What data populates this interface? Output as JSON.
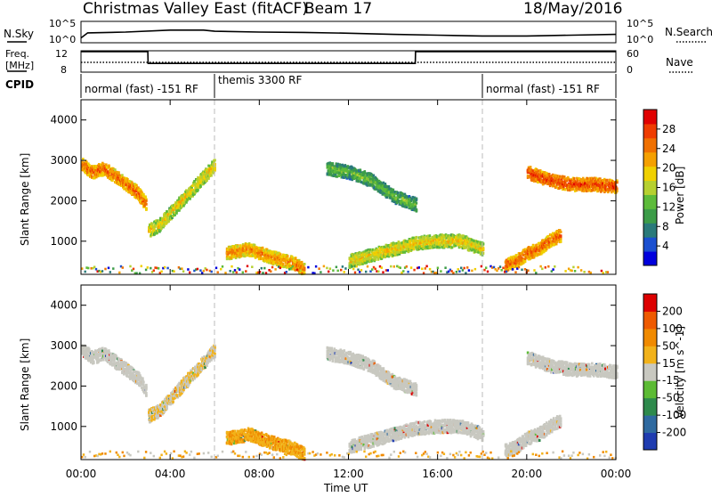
{
  "header": {
    "title": "Christmas Valley East (fitACF)",
    "beam": "Beam 17",
    "date": "18/May/2016"
  },
  "panels": {
    "nsky": {
      "label": "N.Sky",
      "ticks": [
        "10^5",
        "10^0"
      ]
    },
    "nsearch": {
      "label": "N.Search",
      "ticks": [
        "10^5",
        "10^0"
      ]
    },
    "freq": {
      "label_line1": "Freq.",
      "label_line2": "[MHz]",
      "ticks": [
        "12",
        "8"
      ]
    },
    "nave": {
      "label": "Nave",
      "ticks": [
        "60",
        "0"
      ]
    },
    "cpid": {
      "label": "CPID",
      "segments": [
        {
          "name": "normal (fast) -151 RF",
          "start": "00:00",
          "end": "06:00"
        },
        {
          "name": "themis 3300 RF",
          "start": "06:00",
          "end": "18:00"
        },
        {
          "name": "normal (fast) -151 RF",
          "start": "18:00",
          "end": "24:00"
        }
      ]
    }
  },
  "colorbars": {
    "power": {
      "label": "Power [dB]",
      "ticks": [
        "28",
        "24",
        "20",
        "16",
        "12",
        "8",
        "4"
      ],
      "colors": [
        "#0000dd",
        "#1a4fd0",
        "#2a7a7a",
        "#3c9c48",
        "#5dbb3a",
        "#b6d030",
        "#f0d000",
        "#f5a000",
        "#f07000",
        "#ef3c00",
        "#e00000"
      ]
    },
    "velocity": {
      "label": "Velocity [m s^-1]",
      "ticks": [
        "200",
        "100",
        "50",
        "15",
        "-15",
        "-50",
        "-100",
        "-200"
      ],
      "colors": [
        "#1f3cb0",
        "#2f6aa0",
        "#2e8a4c",
        "#5cbb34",
        "#c8c8c0",
        "#f2b21a",
        "#f08a00",
        "#ee5a00",
        "#dd0000"
      ]
    }
  },
  "axes": {
    "ylabel": "Slant Range [km]",
    "xlabel": "Time UT",
    "yticks": [
      "1000",
      "2000",
      "3000",
      "4000"
    ],
    "xticks": [
      "00:00",
      "04:00",
      "08:00",
      "12:00",
      "16:00",
      "20:00",
      "00:00"
    ]
  },
  "chart_data": [
    {
      "type": "line",
      "title": "N.Sky / N.Search",
      "x": [
        0,
        0.3,
        2,
        4,
        5.5,
        6,
        8,
        10,
        12,
        14,
        16,
        18,
        20,
        22,
        24
      ],
      "series": [
        {
          "name": "N.Sky",
          "values": [
            1.0,
            2.3,
            2.5,
            3.0,
            3.0,
            2.7,
            2.5,
            2.4,
            2.2,
            1.9,
            1.7,
            1.5,
            1.5,
            1.7,
            1.9
          ]
        }
      ],
      "ylim": [
        0,
        5
      ]
    },
    {
      "type": "line",
      "title": "Freq. [MHz] / Nave",
      "x": [
        0,
        3,
        3.01,
        15,
        15.01,
        24
      ],
      "series": [
        {
          "name": "Freq.",
          "values": [
            12,
            12,
            9.6,
            9.6,
            12,
            12
          ]
        },
        {
          "name": "Nave",
          "values": [
            30,
            30,
            30,
            30,
            30,
            30
          ]
        }
      ],
      "ylim": [
        8,
        12
      ]
    },
    {
      "type": "heatmap",
      "title": "Power [dB]",
      "xlabel": "Time UT",
      "ylabel": "Slant Range [km]",
      "xlim": [
        0,
        24
      ],
      "ylim": [
        180,
        4500
      ],
      "zlim": [
        0,
        32
      ],
      "bands": [
        {
          "x": [
            0.0,
            0.5,
            1.0,
            1.5,
            2.0,
            2.5,
            2.9
          ],
          "y": [
            2900,
            2700,
            2800,
            2600,
            2400,
            2200,
            1900
          ],
          "db": 26
        },
        {
          "x": [
            3.0,
            3.5,
            4.0,
            4.5,
            5.0,
            5.5,
            6.0
          ],
          "y": [
            1250,
            1400,
            1700,
            2000,
            2300,
            2600,
            2900
          ],
          "db": 20
        },
        {
          "x": [
            6.5,
            7.5,
            8.5,
            9.5,
            10.0
          ],
          "y": [
            700,
            800,
            600,
            450,
            300
          ],
          "db": 24
        },
        {
          "x": [
            11.0,
            12.0,
            13.0,
            14.0,
            15.0
          ],
          "y": [
            2800,
            2700,
            2500,
            2100,
            1900
          ],
          "db": 14
        },
        {
          "x": [
            12.0,
            13.0,
            14.0,
            15.0,
            16.0,
            17.0,
            18.0
          ],
          "y": [
            500,
            650,
            800,
            950,
            1000,
            1000,
            800
          ],
          "db": 20
        },
        {
          "x": [
            19.0,
            19.5,
            20.0,
            20.5,
            21.0,
            21.5
          ],
          "y": [
            400,
            500,
            700,
            800,
            1000,
            1150
          ],
          "db": 26
        },
        {
          "x": [
            20.0,
            21.0,
            22.0,
            23.0,
            24.0
          ],
          "y": [
            2700,
            2500,
            2400,
            2400,
            2350
          ],
          "db": 28
        }
      ]
    },
    {
      "type": "heatmap",
      "title": "Velocity [m s^-1]",
      "xlabel": "Time UT",
      "ylabel": "Slant Range [km]",
      "xlim": [
        0,
        24
      ],
      "ylim": [
        180,
        4500
      ],
      "zlim": [
        -200,
        200
      ],
      "bands": [
        {
          "x": [
            0.0,
            0.5,
            1.0,
            1.5,
            2.0,
            2.5,
            2.9
          ],
          "y": [
            2900,
            2700,
            2800,
            2600,
            2400,
            2200,
            1900
          ],
          "vel": 0
        },
        {
          "x": [
            3.0,
            3.5,
            4.0,
            4.5,
            5.0,
            5.5,
            6.0
          ],
          "y": [
            1250,
            1400,
            1700,
            2000,
            2300,
            2600,
            2900
          ],
          "vel": -20
        },
        {
          "x": [
            6.5,
            7.5,
            8.5,
            9.5,
            10.0
          ],
          "y": [
            700,
            800,
            600,
            450,
            300
          ],
          "vel": -60
        },
        {
          "x": [
            11.0,
            12.0,
            13.0,
            14.0,
            15.0
          ],
          "y": [
            2800,
            2700,
            2500,
            2100,
            1900
          ],
          "vel": 0
        },
        {
          "x": [
            12.0,
            13.0,
            14.0,
            15.0,
            16.0,
            17.0,
            18.0
          ],
          "y": [
            500,
            650,
            800,
            950,
            1000,
            1000,
            800
          ],
          "vel": 0
        },
        {
          "x": [
            19.0,
            19.5,
            20.0,
            20.5,
            21.0,
            21.5
          ],
          "y": [
            400,
            500,
            700,
            800,
            1000,
            1150
          ],
          "vel": 0
        },
        {
          "x": [
            20.0,
            21.0,
            22.0,
            23.0,
            24.0
          ],
          "y": [
            2700,
            2500,
            2400,
            2400,
            2350
          ],
          "vel": 0
        }
      ]
    }
  ]
}
